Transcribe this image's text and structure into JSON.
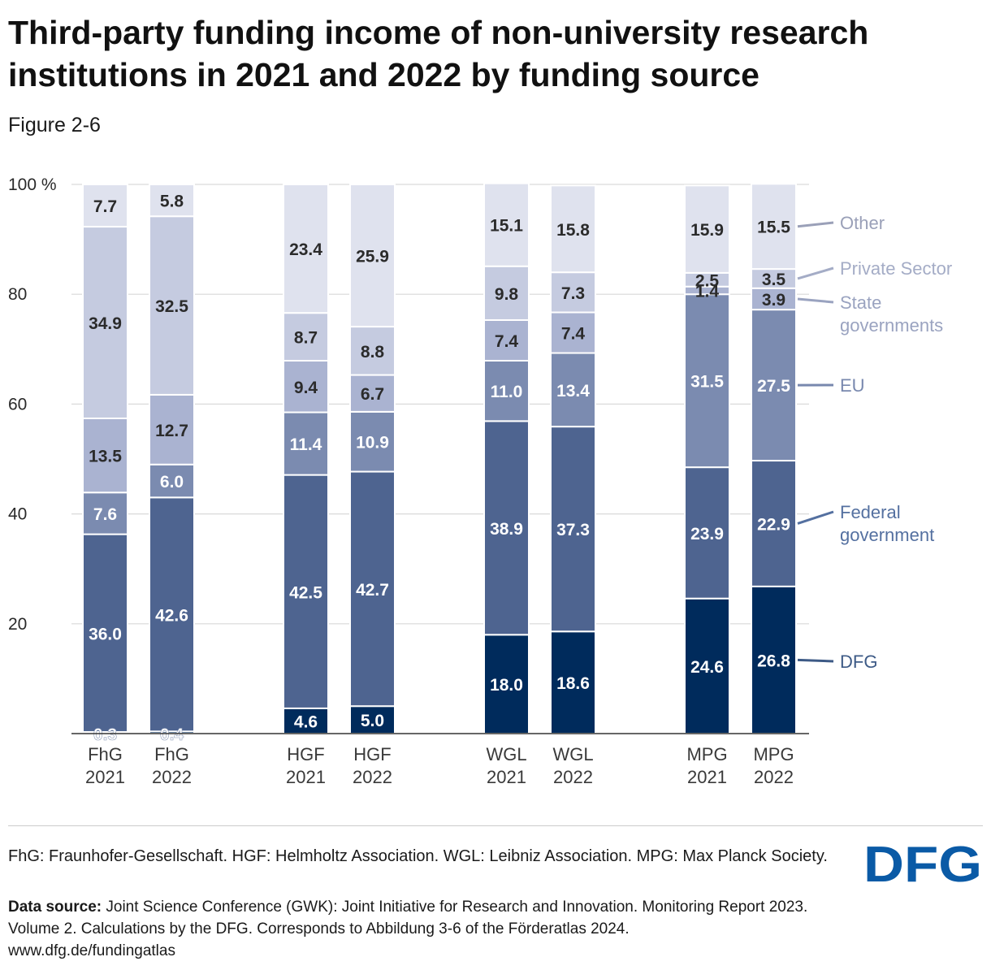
{
  "title": "Third-party funding income of non-university research institutions in 2021 and 2022 by funding source",
  "subtitle": "Figure 2-6",
  "chart_data": {
    "type": "bar",
    "stacked": true,
    "y_axis": {
      "ticks": [
        "100 %",
        "80",
        "60",
        "40",
        "20"
      ],
      "tick_values": [
        100,
        80,
        60,
        40,
        20
      ],
      "ylim": [
        0,
        100
      ]
    },
    "categories": [
      {
        "line1": "FhG",
        "line2": "2021"
      },
      {
        "line1": "FhG",
        "line2": "2022"
      },
      {
        "line1": "HGF",
        "line2": "2021"
      },
      {
        "line1": "HGF",
        "line2": "2022"
      },
      {
        "line1": "WGL",
        "line2": "2021"
      },
      {
        "line1": "WGL",
        "line2": "2022"
      },
      {
        "line1": "MPG",
        "line2": "2021"
      },
      {
        "line1": "MPG",
        "line2": "2022"
      }
    ],
    "series": [
      {
        "name": "DFG",
        "legend_lines": [
          "DFG"
        ],
        "color": "#002b5c",
        "text_color": "#ffffff",
        "label_color": "#3d5a86",
        "values": [
          0.3,
          0.4,
          4.6,
          5.0,
          18.0,
          18.6,
          24.6,
          26.8
        ],
        "labels": [
          "0.3",
          "0.4",
          "4.6",
          "5.0",
          "18.0",
          "18.6",
          "24.6",
          "26.8"
        ]
      },
      {
        "name": "Federal government",
        "legend_lines": [
          "Federal",
          "government"
        ],
        "color": "#4e6490",
        "text_color": "#ffffff",
        "label_color": "#5470a0",
        "values": [
          36.0,
          42.6,
          42.5,
          42.7,
          38.9,
          37.3,
          23.9,
          22.9
        ],
        "labels": [
          "36.0",
          "42.6",
          "42.5",
          "42.7",
          "38.9",
          "37.3",
          "23.9",
          "22.9"
        ]
      },
      {
        "name": "EU",
        "legend_lines": [
          "EU"
        ],
        "color": "#7b8bb0",
        "text_color": "#ffffff",
        "label_color": "#7888ae",
        "values": [
          7.6,
          6.0,
          11.4,
          10.9,
          11.0,
          13.4,
          31.5,
          27.5
        ],
        "labels": [
          "7.6",
          "6.0",
          "11.4",
          "10.9",
          "11.0",
          "13.4",
          "31.5",
          "27.5"
        ]
      },
      {
        "name": "State governments",
        "legend_lines": [
          "State",
          "governments"
        ],
        "color": "#aab3d1",
        "text_color": "#2b2b2b",
        "label_color": "#9aa3c0",
        "values": [
          13.5,
          12.7,
          9.4,
          6.7,
          7.4,
          7.4,
          1.4,
          3.9
        ],
        "labels": [
          "13.5",
          "12.7",
          "9.4",
          "6.7",
          "7.4",
          "7.4",
          "1.4",
          "3.9"
        ]
      },
      {
        "name": "Private Sector",
        "legend_lines": [
          "Private Sector"
        ],
        "color": "#c5cbe0",
        "text_color": "#2b2b2b",
        "label_color": "#a4acc6",
        "values": [
          34.9,
          32.5,
          8.7,
          8.8,
          9.8,
          7.3,
          2.5,
          3.5
        ],
        "labels": [
          "34.9",
          "32.5",
          "8.7",
          "8.8",
          "9.8",
          "7.3",
          "2.5",
          "3.5"
        ]
      },
      {
        "name": "Other",
        "legend_lines": [
          "Other"
        ],
        "color": "#dfe2ee",
        "text_color": "#2b2b2b",
        "label_color": "#9aa0b8",
        "values": [
          7.7,
          5.8,
          23.4,
          25.9,
          15.1,
          15.8,
          15.9,
          15.5
        ],
        "labels": [
          "7.7",
          "5.8",
          "23.4",
          "25.9",
          "15.1",
          "15.8",
          "15.9",
          "15.5"
        ]
      }
    ]
  },
  "footnote": "FhG: Fraunhofer-Gesellschaft. HGF: Helmholtz Association. WGL: Leibniz Association. MPG: Max Planck Society.",
  "source": {
    "label": "Data source:",
    "text": "Joint Science Conference (GWK): Joint Initiative for Research and Innovation. Monitoring Report 2023. Volume 2. Calculations by the DFG. Corresponds to Abbildung 3-6 of the Förderatlas 2024.",
    "url": "www.dfg.de/fundingatlas"
  },
  "logo": {
    "text": "DFG",
    "color": "#0a5aa6"
  }
}
